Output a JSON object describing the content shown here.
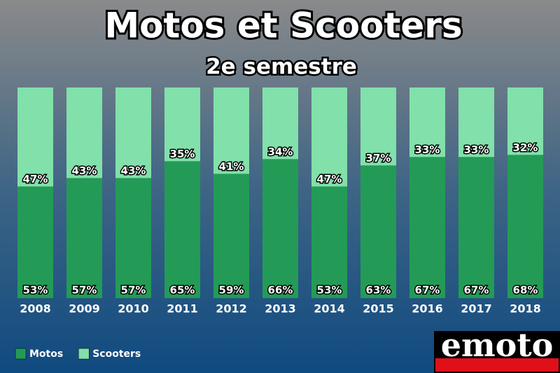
{
  "chart_data": {
    "type": "bar",
    "stacked": true,
    "title": "Motos et Scooters",
    "subtitle": "2e semestre",
    "categories": [
      "2008",
      "2009",
      "2010",
      "2011",
      "2012",
      "2013",
      "2014",
      "2015",
      "2016",
      "2017",
      "2018"
    ],
    "series": [
      {
        "name": "Motos",
        "color": "#239b56",
        "values": [
          53,
          57,
          57,
          65,
          59,
          66,
          53,
          63,
          67,
          67,
          68
        ],
        "value_labels": [
          "53%",
          "57%",
          "57%",
          "65%",
          "59%",
          "66%",
          "53%",
          "63%",
          "67%",
          "67%",
          "68%"
        ]
      },
      {
        "name": "Scooters",
        "color": "#82e0aa",
        "values": [
          47,
          43,
          43,
          35,
          41,
          34,
          47,
          37,
          33,
          33,
          32
        ],
        "value_labels": [
          "47%",
          "43%",
          "43%",
          "35%",
          "41%",
          "34%",
          "47%",
          "37%",
          "33%",
          "33%",
          "32%"
        ]
      }
    ],
    "ylim": [
      0,
      100
    ],
    "legend": "bottom-left",
    "logo": "emoto"
  }
}
